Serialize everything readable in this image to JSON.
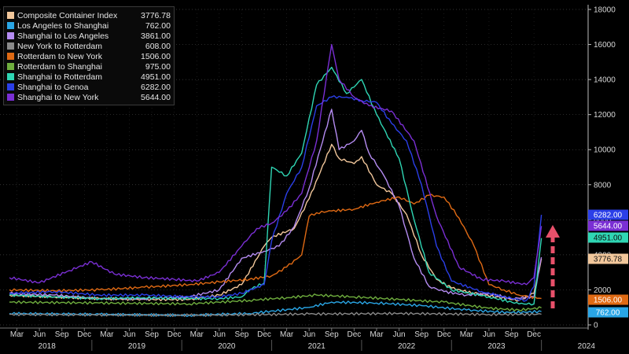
{
  "chart_data": {
    "type": "line",
    "title": "",
    "x_start": "2018-02",
    "y_range": [
      0,
      18000
    ],
    "y_ticks": [
      0,
      2000,
      4000,
      6000,
      8000,
      10000,
      12000,
      14000,
      16000,
      18000
    ],
    "y_tick_labels": [
      "0",
      "2000",
      "4000",
      "6000",
      "8000",
      "10000",
      "12000",
      "14000",
      "16000",
      "18000"
    ],
    "x_month_labels": [
      "Mar",
      "Jun",
      "Sep",
      "Dec",
      "Mar",
      "Jun",
      "Sep",
      "Dec",
      "Mar",
      "Jun",
      "Sep",
      "Dec",
      "Mar",
      "Jun",
      "Sep",
      "Dec",
      "Mar",
      "Jun",
      "Sep",
      "Dec",
      "Mar",
      "Jun",
      "Sep",
      "Dec"
    ],
    "x_year_labels": [
      "2018",
      "2019",
      "2020",
      "2021",
      "2022",
      "2023",
      "2024"
    ],
    "grid": "dotted",
    "legend_position": "top-left",
    "series": [
      {
        "name": "Composite Container Index",
        "last": "3776.78",
        "color": "#f2c79b",
        "x": [
          "2018-02",
          "2018-08",
          "2019-02",
          "2019-08",
          "2020-02",
          "2020-06",
          "2020-09",
          "2020-12",
          "2021-01",
          "2021-04",
          "2021-06",
          "2021-09",
          "2021-10",
          "2021-12",
          "2022-01",
          "2022-03",
          "2022-05",
          "2022-07",
          "2022-09",
          "2022-11",
          "2023-01",
          "2023-04",
          "2023-07",
          "2023-10",
          "2023-12",
          "2024-01"
        ],
        "values": [
          1700,
          1600,
          1500,
          1450,
          1450,
          1700,
          2300,
          4500,
          5000,
          5500,
          7200,
          10300,
          9500,
          9200,
          9600,
          8000,
          7500,
          6300,
          4000,
          2600,
          2100,
          1800,
          1600,
          1400,
          1800,
          3776.78
        ]
      },
      {
        "name": "Los Angeles to Shanghai",
        "last": "762.00",
        "color": "#2aa6e6",
        "x": [
          "2018-02",
          "2019-02",
          "2020-02",
          "2020-10",
          "2021-06",
          "2021-09",
          "2022-03",
          "2022-09",
          "2023-03",
          "2023-09",
          "2024-01"
        ],
        "values": [
          650,
          600,
          550,
          650,
          1000,
          1300,
          1250,
          1100,
          850,
          700,
          762
        ]
      },
      {
        "name": "Shanghai to Los Angeles",
        "last": "3861.00",
        "color": "#b58cf2",
        "x": [
          "2018-02",
          "2018-08",
          "2019-02",
          "2019-08",
          "2020-02",
          "2020-06",
          "2020-09",
          "2020-12",
          "2021-02",
          "2021-04",
          "2021-06",
          "2021-09",
          "2021-10",
          "2021-12",
          "2022-01",
          "2022-02",
          "2022-04",
          "2022-06",
          "2022-08",
          "2022-10",
          "2022-12",
          "2023-03",
          "2023-06",
          "2023-09",
          "2023-12",
          "2024-01"
        ],
        "values": [
          1800,
          1700,
          1500,
          1500,
          1600,
          2000,
          3800,
          4200,
          4500,
          5600,
          7800,
          12300,
          10000,
          10500,
          11100,
          9800,
          8500,
          6800,
          3800,
          2200,
          1900,
          1700,
          1800,
          1500,
          1600,
          3861
        ]
      },
      {
        "name": "New York to Rotterdam",
        "last": "608.00",
        "color": "#8a8a8a",
        "x": [
          "2018-02",
          "2020-02",
          "2021-06",
          "2022-06",
          "2023-06",
          "2024-01"
        ],
        "values": [
          600,
          550,
          620,
          650,
          600,
          608
        ]
      },
      {
        "name": "Rotterdam to New York",
        "last": "1506.00",
        "color": "#e06a14",
        "x": [
          "2018-02",
          "2018-08",
          "2019-02",
          "2019-08",
          "2020-02",
          "2020-06",
          "2020-10",
          "2021-01",
          "2021-03",
          "2021-05",
          "2021-06",
          "2021-07",
          "2021-09",
          "2021-12",
          "2022-03",
          "2022-06",
          "2022-08",
          "2022-10",
          "2022-12",
          "2023-02",
          "2023-04",
          "2023-06",
          "2023-08",
          "2023-10",
          "2024-01"
        ],
        "values": [
          2000,
          1950,
          2000,
          2150,
          2300,
          2450,
          2600,
          2800,
          3300,
          4000,
          6200,
          6400,
          6500,
          6600,
          7000,
          7300,
          6900,
          7400,
          7300,
          6100,
          4500,
          2300,
          2000,
          1700,
          1506
        ]
      },
      {
        "name": "Rotterdam to Shanghai",
        "last": "975.00",
        "color": "#6fae3e",
        "x": [
          "2018-02",
          "2019-02",
          "2020-02",
          "2020-10",
          "2021-03",
          "2021-07",
          "2021-12",
          "2022-06",
          "2022-12",
          "2023-06",
          "2023-10",
          "2024-01"
        ],
        "values": [
          1300,
          1250,
          1200,
          1400,
          1550,
          1700,
          1600,
          1450,
          1300,
          950,
          850,
          975
        ]
      },
      {
        "name": "Shanghai to Rotterdam",
        "last": "4951.00",
        "color": "#2fd6b4",
        "x": [
          "2018-02",
          "2018-08",
          "2019-02",
          "2019-08",
          "2020-02",
          "2020-06",
          "2020-09",
          "2020-10",
          "2020-12",
          "2021-01",
          "2021-03",
          "2021-05",
          "2021-07",
          "2021-09",
          "2021-11",
          "2022-01",
          "2022-03",
          "2022-06",
          "2022-08",
          "2022-10",
          "2023-01",
          "2023-06",
          "2023-10",
          "2023-12",
          "2024-01"
        ],
        "values": [
          1700,
          1600,
          1500,
          1550,
          1500,
          1500,
          1600,
          2000,
          2400,
          9000,
          8500,
          9800,
          13700,
          14700,
          13200,
          14000,
          12000,
          9500,
          6000,
          3000,
          2000,
          1600,
          1200,
          1200,
          4951
        ]
      },
      {
        "name": "Shanghai to Genoa",
        "last": "6282.00",
        "color": "#2b3fe8",
        "x": [
          "2018-02",
          "2018-08",
          "2019-02",
          "2019-08",
          "2020-02",
          "2020-06",
          "2020-09",
          "2020-12",
          "2021-01",
          "2021-03",
          "2021-05",
          "2021-07",
          "2021-09",
          "2021-11",
          "2022-01",
          "2022-03",
          "2022-05",
          "2022-07",
          "2022-09",
          "2022-11",
          "2023-01",
          "2023-05",
          "2023-09",
          "2023-11",
          "2023-12",
          "2024-01"
        ],
        "values": [
          1800,
          1900,
          1700,
          1700,
          1600,
          1600,
          1800,
          2300,
          4800,
          7500,
          9000,
          12500,
          13000,
          13000,
          12800,
          12700,
          11500,
          10500,
          8000,
          4500,
          2500,
          1900,
          1500,
          1400,
          2200,
          6282
        ]
      },
      {
        "name": "Shanghai to New York",
        "last": "5644.00",
        "color": "#7a2fd4",
        "x": [
          "2018-02",
          "2018-06",
          "2018-10",
          "2019-01",
          "2019-04",
          "2019-08",
          "2019-12",
          "2020-03",
          "2020-06",
          "2020-09",
          "2020-11",
          "2021-01",
          "2021-03",
          "2021-05",
          "2021-07",
          "2021-09",
          "2021-10",
          "2021-12",
          "2022-02",
          "2022-05",
          "2022-08",
          "2022-11",
          "2023-02",
          "2023-05",
          "2023-08",
          "2023-11",
          "2023-12",
          "2024-01"
        ],
        "values": [
          2700,
          2400,
          3100,
          3600,
          2900,
          2700,
          2600,
          2500,
          3000,
          4500,
          5500,
          5800,
          6500,
          7500,
          10500,
          16000,
          14000,
          13000,
          12500,
          12200,
          10500,
          6200,
          3300,
          2600,
          2500,
          2300,
          2700,
          5644
        ]
      }
    ]
  }
}
